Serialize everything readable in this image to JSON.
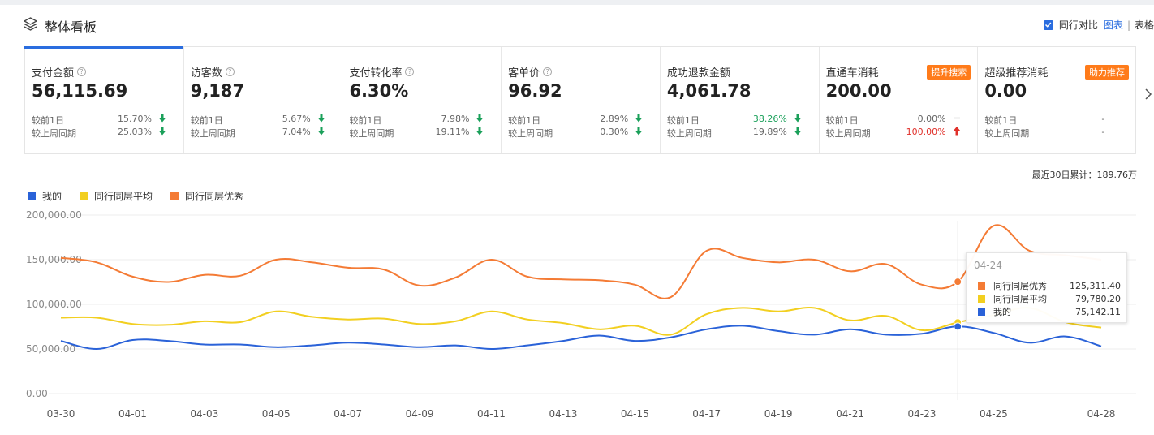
{
  "header": {
    "title": "整体看板",
    "compare_label": "同行对比",
    "view_chart": "图表",
    "separator": "|",
    "view_table": "表格"
  },
  "cards": [
    {
      "title": "支付金额",
      "help": "?",
      "value": "56,115.69",
      "badge": "",
      "rows": [
        {
          "label": "较前1日",
          "pct": "15.70%",
          "dir": "down",
          "color": "grey"
        },
        {
          "label": "较上周同期",
          "pct": "25.03%",
          "dir": "down",
          "color": "grey"
        }
      ]
    },
    {
      "title": "访客数",
      "help": "?",
      "value": "9,187",
      "badge": "",
      "rows": [
        {
          "label": "较前1日",
          "pct": "5.67%",
          "dir": "down",
          "color": "grey"
        },
        {
          "label": "较上周同期",
          "pct": "7.04%",
          "dir": "down",
          "color": "grey"
        }
      ]
    },
    {
      "title": "支付转化率",
      "help": "?",
      "value": "6.30%",
      "badge": "",
      "rows": [
        {
          "label": "较前1日",
          "pct": "7.98%",
          "dir": "down",
          "color": "grey"
        },
        {
          "label": "较上周同期",
          "pct": "19.11%",
          "dir": "down",
          "color": "grey"
        }
      ]
    },
    {
      "title": "客单价",
      "help": "?",
      "value": "96.92",
      "badge": "",
      "rows": [
        {
          "label": "较前1日",
          "pct": "2.89%",
          "dir": "down",
          "color": "grey"
        },
        {
          "label": "较上周同期",
          "pct": "0.30%",
          "dir": "down",
          "color": "grey"
        }
      ]
    },
    {
      "title": "成功退款金额",
      "help": "",
      "value": "4,061.78",
      "badge": "",
      "rows": [
        {
          "label": "较前1日",
          "pct": "38.26%",
          "dir": "down",
          "color": "green"
        },
        {
          "label": "较上周同期",
          "pct": "19.89%",
          "dir": "down",
          "color": "grey"
        }
      ]
    },
    {
      "title": "直通车消耗",
      "help": "",
      "value": "200.00",
      "badge": "提升搜索",
      "rows": [
        {
          "label": "较前1日",
          "pct": "0.00%",
          "dir": "flat",
          "color": "grey"
        },
        {
          "label": "较上周同期",
          "pct": "100.00%",
          "dir": "up",
          "color": "red"
        }
      ]
    },
    {
      "title": "超级推荐消耗",
      "help": "",
      "value": "0.00",
      "badge": "助力推荐",
      "rows": [
        {
          "label": "较前1日",
          "pct": "-",
          "dir": "none",
          "color": "grey"
        },
        {
          "label": "较上周同期",
          "pct": "-",
          "dir": "none",
          "color": "grey"
        }
      ]
    }
  ],
  "cumulative": "最近30日累计：189.76万",
  "colors": {
    "mine": "#2a62d8",
    "avg": "#f2cf20",
    "excellent": "#f47b35",
    "green": "#1aa05a",
    "red": "#e0302a",
    "accent": "#2a6ddf",
    "badge": "#ff7b1a"
  },
  "chart_data": {
    "type": "line",
    "x_labels": [
      "03-30",
      "04-01",
      "04-03",
      "04-05",
      "04-07",
      "04-09",
      "04-11",
      "04-13",
      "04-15",
      "04-17",
      "04-19",
      "04-21",
      "04-23",
      "04-25",
      "04-28"
    ],
    "y_ticks": [
      "200,000.00",
      "150,000.00",
      "100,000.00",
      "50,000.00",
      "0.00"
    ],
    "ylim": [
      0,
      200000
    ],
    "dates": [
      "03-30",
      "03-31",
      "04-01",
      "04-02",
      "04-03",
      "04-04",
      "04-05",
      "04-06",
      "04-07",
      "04-08",
      "04-09",
      "04-10",
      "04-11",
      "04-12",
      "04-13",
      "04-14",
      "04-15",
      "04-16",
      "04-17",
      "04-18",
      "04-19",
      "04-20",
      "04-21",
      "04-22",
      "04-23",
      "04-24",
      "04-25",
      "04-26",
      "04-27",
      "04-28"
    ],
    "series": [
      {
        "name": "我的",
        "color": "#2a62d8",
        "values": [
          59000,
          50000,
          60000,
          59000,
          55000,
          55000,
          52000,
          54000,
          57000,
          55000,
          52000,
          54000,
          50000,
          54000,
          59000,
          65000,
          59000,
          63000,
          72000,
          76000,
          70000,
          66000,
          72000,
          66000,
          67000,
          75142,
          68000,
          57000,
          64000,
          53000
        ]
      },
      {
        "name": "同行同层平均",
        "color": "#f2cf20",
        "values": [
          85000,
          85000,
          78000,
          77000,
          81000,
          80000,
          92000,
          86000,
          83000,
          84000,
          78000,
          81000,
          92000,
          83000,
          79000,
          72000,
          76000,
          66000,
          89000,
          96000,
          92000,
          96000,
          82000,
          87000,
          71000,
          79780,
          88000,
          96000,
          80000,
          74000
        ]
      },
      {
        "name": "同行同层优秀",
        "color": "#f47b35",
        "values": [
          152000,
          147000,
          131000,
          125000,
          133000,
          132000,
          150000,
          147000,
          141000,
          139000,
          121000,
          130000,
          150000,
          131000,
          128000,
          127000,
          122000,
          108000,
          160000,
          152000,
          147000,
          150000,
          137000,
          145000,
          122000,
          125311,
          188000,
          160000,
          155000,
          150000
        ]
      }
    ],
    "tooltip": {
      "date": "04-24",
      "rows": [
        {
          "name": "同行同层优秀",
          "value": "125,311.40",
          "color": "#f47b35"
        },
        {
          "name": "同行同层平均",
          "value": "79,780.20",
          "color": "#f2cf20"
        },
        {
          "name": "我的",
          "value": "75,142.11",
          "color": "#2a62d8"
        }
      ]
    }
  }
}
